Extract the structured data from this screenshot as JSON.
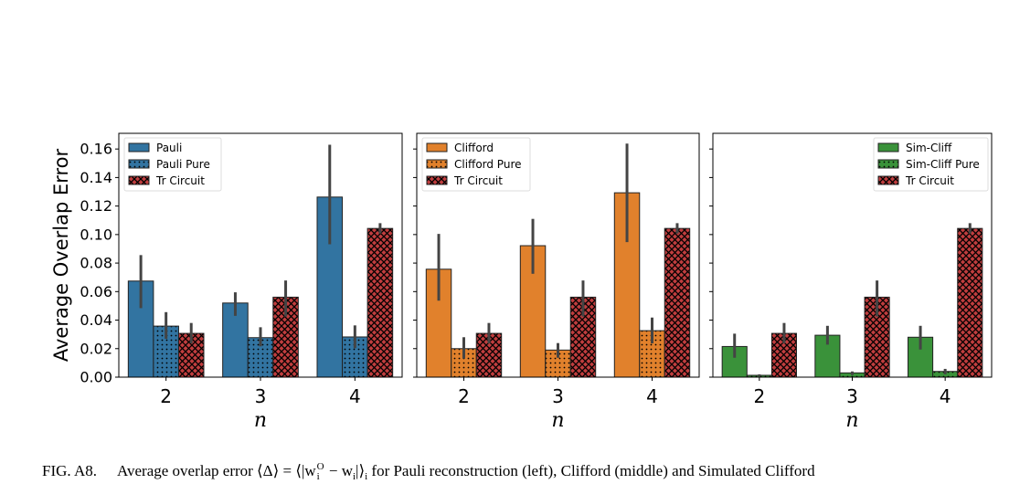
{
  "chart_data": [
    {
      "type": "bar",
      "panel": "left",
      "categories": [
        "2",
        "3",
        "4"
      ],
      "xlabel": "n",
      "ylabel": "Average Overlap Error",
      "ylim": [
        0,
        0.171
      ],
      "yticks": [
        "0.00",
        "0.02",
        "0.04",
        "0.06",
        "0.08",
        "0.10",
        "0.12",
        "0.14",
        "0.16"
      ],
      "legend_position": "upper-left",
      "series": [
        {
          "name": "Pauli",
          "color": "#3274a1",
          "hatch": "none",
          "values": [
            0.0674,
            0.052,
            0.1263
          ],
          "err_low": [
            0.0484,
            0.043,
            0.0932
          ],
          "err_high": [
            0.0856,
            0.0595,
            0.163
          ]
        },
        {
          "name": "Pauli Pure",
          "color": "#3274a1",
          "hatch": "dots",
          "values": [
            0.0358,
            0.0277,
            0.0282
          ],
          "err_low": [
            0.0269,
            0.0216,
            0.0203
          ],
          "err_high": [
            0.0456,
            0.035,
            0.0363
          ]
        },
        {
          "name": "Tr Circuit",
          "color": "#c03d3e",
          "hatch": "crosses",
          "values": [
            0.0307,
            0.0561,
            0.1043
          ],
          "err_low": [
            0.0237,
            0.0425,
            0.1007
          ],
          "err_high": [
            0.038,
            0.0678,
            0.108
          ]
        }
      ]
    },
    {
      "type": "bar",
      "panel": "middle",
      "categories": [
        "2",
        "3",
        "4"
      ],
      "xlabel": "n",
      "ylim": [
        0,
        0.171
      ],
      "legend_position": "upper-left",
      "series": [
        {
          "name": "Clifford",
          "color": "#e1812c",
          "hatch": "none",
          "values": [
            0.0757,
            0.0922,
            0.1293
          ],
          "err_low": [
            0.0536,
            0.0725,
            0.0947
          ],
          "err_high": [
            0.1005,
            0.111,
            0.1638
          ]
        },
        {
          "name": "Clifford Pure",
          "color": "#e1812c",
          "hatch": "dots",
          "values": [
            0.02,
            0.019,
            0.0326
          ],
          "err_low": [
            0.013,
            0.0136,
            0.0237
          ],
          "err_high": [
            0.028,
            0.0239,
            0.0418
          ]
        },
        {
          "name": "Tr Circuit",
          "color": "#c03d3e",
          "hatch": "crosses",
          "values": [
            0.0307,
            0.0561,
            0.1043
          ],
          "err_low": [
            0.0237,
            0.0425,
            0.1007
          ],
          "err_high": [
            0.038,
            0.0678,
            0.108
          ]
        }
      ]
    },
    {
      "type": "bar",
      "panel": "right",
      "categories": [
        "2",
        "3",
        "4"
      ],
      "xlabel": "n",
      "ylim": [
        0,
        0.171
      ],
      "legend_position": "upper-right",
      "series": [
        {
          "name": "Sim-Cliff",
          "color": "#3a923a",
          "hatch": "none",
          "values": [
            0.0215,
            0.0294,
            0.028
          ],
          "err_low": [
            0.0136,
            0.0228,
            0.0194
          ],
          "err_high": [
            0.0305,
            0.036,
            0.036
          ]
        },
        {
          "name": "Sim-Cliff Pure",
          "color": "#3a923a",
          "hatch": "dots",
          "values": [
            0.0013,
            0.003,
            0.004
          ],
          "err_low": [
            0.0005,
            0.0015,
            0.002
          ],
          "err_high": [
            0.002,
            0.004,
            0.0058
          ]
        },
        {
          "name": "Tr Circuit",
          "color": "#c03d3e",
          "hatch": "crosses",
          "values": [
            0.0307,
            0.0561,
            0.1043
          ],
          "err_low": [
            0.0237,
            0.0425,
            0.1007
          ],
          "err_high": [
            0.038,
            0.0678,
            0.108
          ]
        }
      ]
    }
  ],
  "caption": {
    "label": "FIG. A8.",
    "text": "Average overlap error ⟨Δ⟩ = ⟨|w",
    "sup": "O",
    "sub1": "i",
    "mid": " − w",
    "sub2": "i",
    "close": "|⟩",
    "sub3": "i",
    "rest": " for Pauli reconstruction (left), Clifford (middle) and Simulated Clifford"
  }
}
